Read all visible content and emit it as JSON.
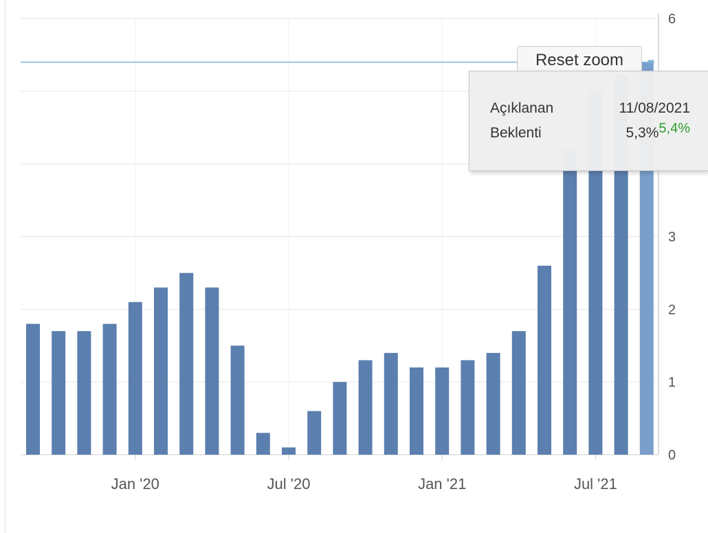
{
  "chart_data": {
    "type": "bar",
    "title": "",
    "xlabel": "",
    "ylabel": "",
    "ylim": [
      0,
      6
    ],
    "y_ticks": [
      "0",
      "1",
      "2",
      "3",
      "6"
    ],
    "x_tick_labels": [
      "Jan '20",
      "Jul '20",
      "Jan '21",
      "Jul '21"
    ],
    "grid": true,
    "y_axis_side": "right",
    "series": [
      {
        "values": [
          1.8,
          1.7,
          1.7,
          1.8,
          2.1,
          2.3,
          2.5,
          2.3,
          1.5,
          0.3,
          0.1,
          0.6,
          1.0,
          1.3,
          1.4,
          1.2,
          1.2,
          1.3,
          1.4,
          1.7,
          2.6,
          4.2,
          5.0,
          5.4,
          5.4
        ],
        "dates": [
          "Sep '19",
          "Oct '19",
          "Nov '19",
          "Dec '19",
          "Jan '20",
          "Feb '20",
          "Mar '20",
          "Apr '20",
          "May '20",
          "Jun '20",
          "Jul '20",
          "Aug '20",
          "Sep '20",
          "Oct '20",
          "Nov '20",
          "Dec '20",
          "Jan '21",
          "Feb '21",
          "Mar '21",
          "Apr '21",
          "May '21",
          "Jun '21",
          "Jul '21",
          "Aug '21",
          "Sep '21"
        ]
      }
    ],
    "forecast_line_value": 5.4,
    "colors": {
      "bar": "#5b7fae",
      "bar_highlight": "#7a9fcc",
      "gridline": "#e6e6e6",
      "forecast_line": "#7fb2d8",
      "actual_text": "#2ca02c"
    }
  },
  "controls": {
    "reset_zoom_label": "Reset zoom"
  },
  "tooltip": {
    "row1_label": "Açıklanan",
    "row1_value": "11/08/2021",
    "row2_label": "Beklenti",
    "row2_value": "5,3%",
    "row2_actual": "5,4%"
  }
}
